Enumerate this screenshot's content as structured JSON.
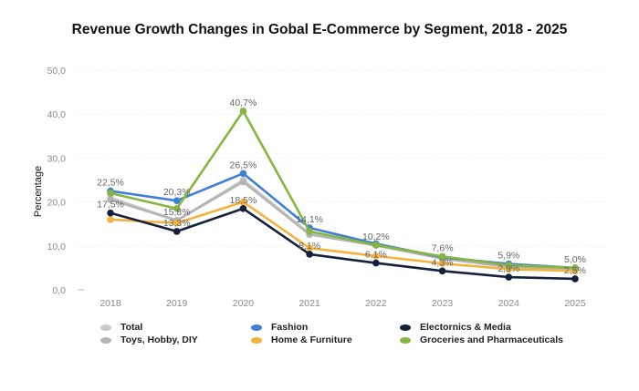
{
  "chart_data": {
    "type": "line",
    "title": "Revenue Growth Changes in Gobal E-Commerce by Segment, 2018 - 2025",
    "xlabel": "",
    "ylabel": "Percentage",
    "categories": [
      "2018",
      "2019",
      "2020",
      "2021",
      "2022",
      "2023",
      "2024",
      "2025"
    ],
    "ylim": [
      0,
      50
    ],
    "yticks": [
      "0,0",
      "10,0",
      "20,0",
      "30,0",
      "40,0",
      "50,0"
    ],
    "ytick_values": [
      0,
      10,
      20,
      30,
      40,
      50
    ],
    "grid": true,
    "legend_position": "bottom",
    "series": [
      {
        "name": "Total",
        "color": "#c9c9c9",
        "values": [
          21.0,
          15.8,
          25.0,
          12.8,
          10.3,
          7.2,
          5.3,
          4.7
        ]
      },
      {
        "name": "Toys, Hobby, DIY",
        "color": "#b4b4b4",
        "values": [
          20.5,
          15.8,
          24.6,
          12.6,
          10.1,
          7.1,
          5.2,
          4.6
        ]
      },
      {
        "name": "Fashion",
        "color": "#3f7fd8",
        "values": [
          22.5,
          20.3,
          26.5,
          14.1,
          10.5,
          7.4,
          5.9,
          5.0
        ]
      },
      {
        "name": "Home & Furniture",
        "color": "#f4b33f",
        "values": [
          16.0,
          15.2,
          20.0,
          9.5,
          7.7,
          6.0,
          4.7,
          4.3
        ]
      },
      {
        "name": "Electornics & Media",
        "color": "#15213a",
        "values": [
          17.5,
          13.3,
          18.5,
          8.1,
          6.1,
          4.3,
          2.9,
          2.5
        ]
      },
      {
        "name": "Groceries and Pharmaceuticals",
        "color": "#86b640",
        "values": [
          22.0,
          18.5,
          40.7,
          13.3,
          10.2,
          7.6,
          5.6,
          5.0
        ]
      }
    ],
    "data_labels": [
      {
        "series": "Fashion",
        "x": "2018",
        "text": "22,5%"
      },
      {
        "series": "Electornics & Media",
        "x": "2018",
        "text": "17,5%"
      },
      {
        "series": "Fashion",
        "x": "2019",
        "text": "20,3%"
      },
      {
        "series": "Total",
        "x": "2019",
        "text": "15,8%"
      },
      {
        "series": "Electornics & Media",
        "x": "2019",
        "text": "13,3%"
      },
      {
        "series": "Groceries and Pharmaceuticals",
        "x": "2020",
        "text": "40,7%"
      },
      {
        "series": "Fashion",
        "x": "2020",
        "text": "26,5%"
      },
      {
        "series": "Electornics & Media",
        "x": "2020",
        "text": "18,5%"
      },
      {
        "series": "Fashion",
        "x": "2021",
        "text": "14,1%"
      },
      {
        "series": "Electornics & Media",
        "x": "2021",
        "text": "8,1%"
      },
      {
        "series": "Groceries and Pharmaceuticals",
        "x": "2022",
        "text": "10,2%"
      },
      {
        "series": "Electornics & Media",
        "x": "2022",
        "text": "6,1%"
      },
      {
        "series": "Groceries and Pharmaceuticals",
        "x": "2023",
        "text": "7,6%"
      },
      {
        "series": "Electornics & Media",
        "x": "2023",
        "text": "4,3%"
      },
      {
        "series": "Fashion",
        "x": "2024",
        "text": "5,9%"
      },
      {
        "series": "Electornics & Media",
        "x": "2024",
        "text": "2,9%"
      },
      {
        "series": "Fashion",
        "x": "2025",
        "text": "5,0%"
      },
      {
        "series": "Electornics & Media",
        "x": "2025",
        "text": "2,5%"
      }
    ]
  },
  "legend": [
    {
      "name": "Total",
      "color": "#c9c9c9"
    },
    {
      "name": "Toys, Hobby, DIY",
      "color": "#b4b4b4"
    },
    {
      "name": "Fashion",
      "color": "#3f7fd8"
    },
    {
      "name": "Home & Furniture",
      "color": "#f4b33f"
    },
    {
      "name": "Electornics & Media",
      "color": "#15213a"
    },
    {
      "name": "Groceries and Pharmaceuticals",
      "color": "#86b640"
    }
  ]
}
